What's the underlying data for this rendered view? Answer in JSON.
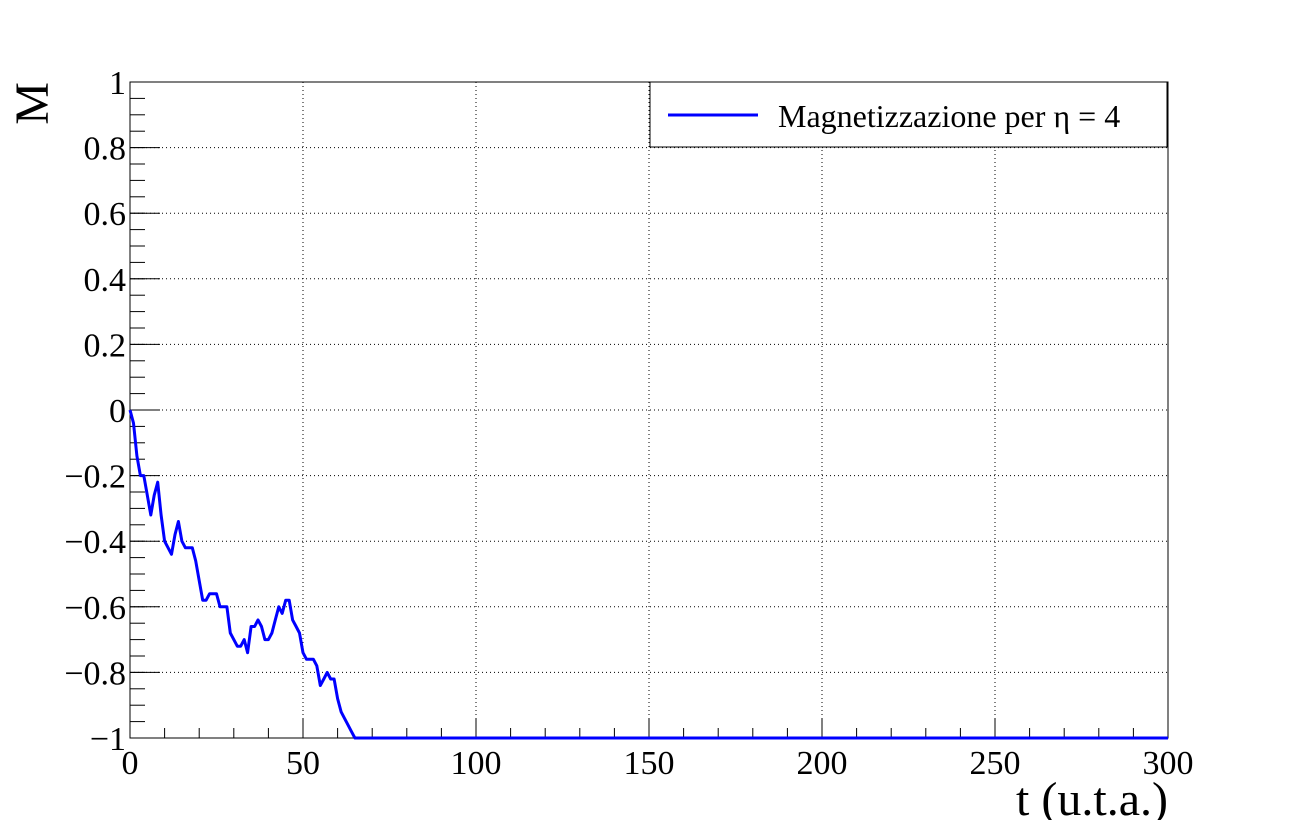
{
  "chart_data": {
    "type": "line",
    "xlabel": "t (u.t.a.)",
    "ylabel": "M",
    "xlim": [
      0,
      300
    ],
    "ylim": [
      -1,
      1
    ],
    "grid": true,
    "legend_position": "top-right",
    "x_ticks": [
      0,
      50,
      100,
      150,
      200,
      250,
      300
    ],
    "x_tick_labels": [
      "0",
      "50",
      "100",
      "150",
      "200",
      "250",
      "300"
    ],
    "y_ticks": [
      -1,
      -0.8,
      -0.6,
      -0.4,
      -0.2,
      0,
      0.2,
      0.4,
      0.6,
      0.8,
      1
    ],
    "y_tick_labels": [
      "−1",
      "−0.8",
      "−0.6",
      "−0.4",
      "−0.2",
      "0",
      "0.2",
      "0.4",
      "0.6",
      "0.8",
      "1"
    ],
    "series": [
      {
        "name": "Magnetizzazione per η = 4",
        "color": "#0000ff",
        "x": [
          0,
          1,
          2,
          3,
          4,
          5,
          6,
          7,
          8,
          9,
          10,
          11,
          12,
          13,
          14,
          15,
          16,
          17,
          18,
          19,
          20,
          21,
          22,
          23,
          24,
          25,
          26,
          27,
          28,
          29,
          30,
          31,
          32,
          33,
          34,
          35,
          36,
          37,
          38,
          39,
          40,
          41,
          42,
          43,
          44,
          45,
          46,
          47,
          48,
          49,
          50,
          51,
          52,
          53,
          54,
          55,
          56,
          57,
          58,
          59,
          60,
          61,
          62,
          63,
          64,
          65,
          66,
          300
        ],
        "y": [
          0,
          -0.04,
          -0.14,
          -0.2,
          -0.2,
          -0.26,
          -0.32,
          -0.26,
          -0.22,
          -0.32,
          -0.4,
          -0.42,
          -0.44,
          -0.38,
          -0.34,
          -0.4,
          -0.42,
          -0.42,
          -0.42,
          -0.46,
          -0.52,
          -0.58,
          -0.58,
          -0.56,
          -0.56,
          -0.56,
          -0.6,
          -0.6,
          -0.6,
          -0.68,
          -0.7,
          -0.72,
          -0.72,
          -0.7,
          -0.74,
          -0.66,
          -0.66,
          -0.64,
          -0.66,
          -0.7,
          -0.7,
          -0.68,
          -0.64,
          -0.6,
          -0.62,
          -0.58,
          -0.58,
          -0.64,
          -0.66,
          -0.68,
          -0.74,
          -0.76,
          -0.76,
          -0.76,
          -0.78,
          -0.84,
          -0.82,
          -0.8,
          -0.82,
          -0.82,
          -0.88,
          -0.92,
          -0.94,
          -0.96,
          -0.98,
          -1,
          -1,
          -1
        ]
      }
    ]
  }
}
